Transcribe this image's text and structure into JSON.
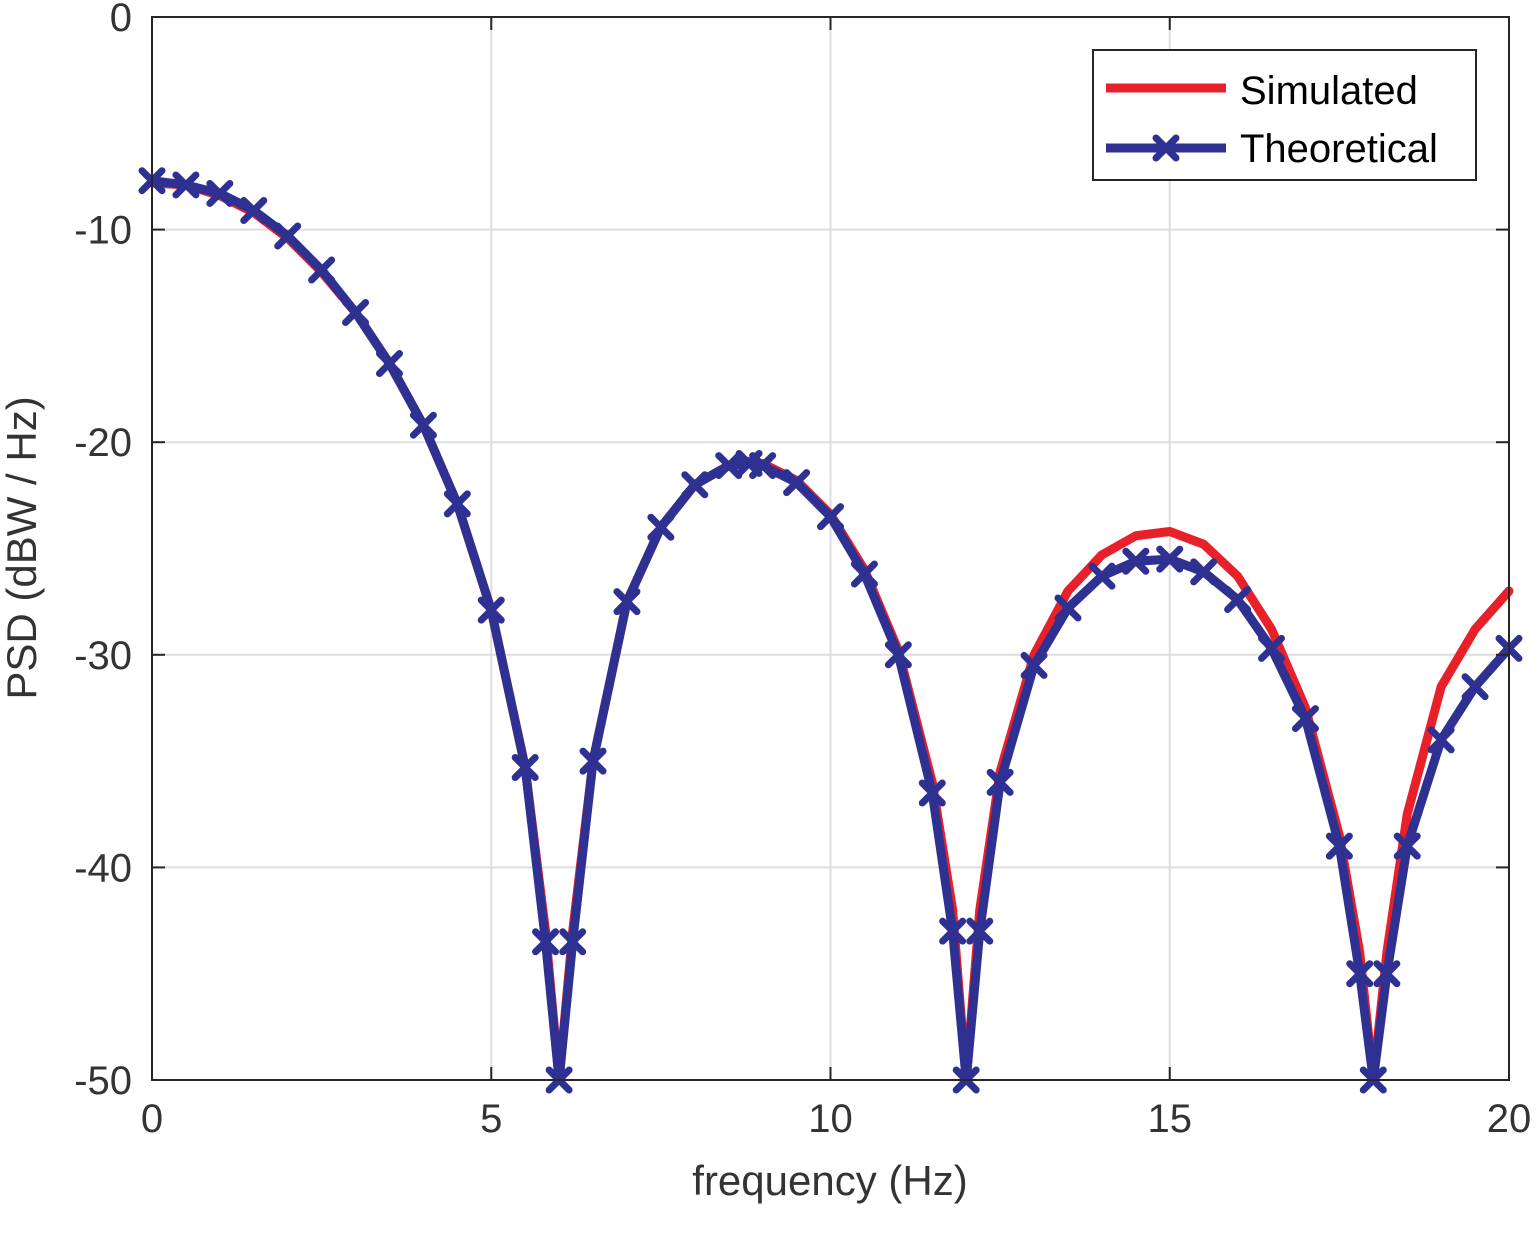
{
  "chart_data": {
    "type": "line",
    "title": "",
    "xlabel": "frequency (Hz)",
    "ylabel": "PSD (dBW / Hz)",
    "xlim": [
      0,
      20
    ],
    "ylim": [
      -50,
      0
    ],
    "xticks": [
      0,
      5,
      10,
      15,
      20
    ],
    "yticks": [
      0,
      -10,
      -20,
      -30,
      -40,
      -50
    ],
    "xtick_labels": [
      "0",
      "5",
      "10",
      "15",
      "20"
    ],
    "ytick_labels": [
      "0",
      "-10",
      "-20",
      "-30",
      "-40",
      "-50"
    ],
    "grid": true,
    "legend_position": "top-right",
    "series": [
      {
        "name": "Simulated",
        "color": "#e8202a",
        "marker": "none",
        "points": [
          [
            0,
            -7.8
          ],
          [
            0.5,
            -7.9
          ],
          [
            1.0,
            -8.4
          ],
          [
            1.5,
            -9.2
          ],
          [
            2.0,
            -10.4
          ],
          [
            2.5,
            -12.0
          ],
          [
            3.0,
            -13.9
          ],
          [
            3.5,
            -16.3
          ],
          [
            4.0,
            -19.2
          ],
          [
            4.5,
            -22.9
          ],
          [
            5.0,
            -27.9
          ],
          [
            5.5,
            -35.3
          ],
          [
            5.8,
            -43.0
          ],
          [
            6.0,
            -50
          ],
          [
            6.2,
            -43.0
          ],
          [
            6.5,
            -35.0
          ],
          [
            7.0,
            -27.5
          ],
          [
            7.5,
            -24.0
          ],
          [
            8.0,
            -22.0
          ],
          [
            8.5,
            -21.1
          ],
          [
            8.8,
            -20.9
          ],
          [
            9.0,
            -21.0
          ],
          [
            9.5,
            -21.8
          ],
          [
            10.0,
            -23.4
          ],
          [
            10.5,
            -26.0
          ],
          [
            11.0,
            -29.8
          ],
          [
            11.5,
            -36.0
          ],
          [
            11.8,
            -42.0
          ],
          [
            12.0,
            -50
          ],
          [
            12.2,
            -42.0
          ],
          [
            12.5,
            -35.5
          ],
          [
            13.0,
            -30.0
          ],
          [
            13.5,
            -27.0
          ],
          [
            14.0,
            -25.3
          ],
          [
            14.5,
            -24.4
          ],
          [
            15.0,
            -24.2
          ],
          [
            15.5,
            -24.8
          ],
          [
            16.0,
            -26.3
          ],
          [
            16.5,
            -28.8
          ],
          [
            17.0,
            -32.5
          ],
          [
            17.5,
            -38.5
          ],
          [
            17.8,
            -44.0
          ],
          [
            18.0,
            -50
          ],
          [
            18.2,
            -44.0
          ],
          [
            18.5,
            -37.5
          ],
          [
            19.0,
            -31.5
          ],
          [
            19.5,
            -28.8
          ],
          [
            20.0,
            -27.0
          ]
        ]
      },
      {
        "name": "Theoretical",
        "color": "#2e3192",
        "marker": "x",
        "points": [
          [
            0,
            -7.7
          ],
          [
            0.5,
            -7.9
          ],
          [
            1.0,
            -8.3
          ],
          [
            1.5,
            -9.1
          ],
          [
            2.0,
            -10.3
          ],
          [
            2.5,
            -11.9
          ],
          [
            3.0,
            -13.9
          ],
          [
            3.5,
            -16.3
          ],
          [
            4.0,
            -19.2
          ],
          [
            4.5,
            -22.9
          ],
          [
            5.0,
            -27.9
          ],
          [
            5.5,
            -35.3
          ],
          [
            5.8,
            -43.5
          ],
          [
            6.0,
            -50
          ],
          [
            6.2,
            -43.5
          ],
          [
            6.5,
            -35.0
          ],
          [
            7.0,
            -27.5
          ],
          [
            7.5,
            -24.0
          ],
          [
            8.0,
            -22.0
          ],
          [
            8.5,
            -21.1
          ],
          [
            8.8,
            -21.0
          ],
          [
            9.0,
            -21.1
          ],
          [
            9.5,
            -21.9
          ],
          [
            10.0,
            -23.5
          ],
          [
            10.5,
            -26.2
          ],
          [
            11.0,
            -30.0
          ],
          [
            11.5,
            -36.5
          ],
          [
            11.8,
            -43.0
          ],
          [
            12.0,
            -50
          ],
          [
            12.2,
            -43.0
          ],
          [
            12.5,
            -36.0
          ],
          [
            13.0,
            -30.5
          ],
          [
            13.5,
            -27.8
          ],
          [
            14.0,
            -26.3
          ],
          [
            14.5,
            -25.6
          ],
          [
            15.0,
            -25.5
          ],
          [
            15.5,
            -26.1
          ],
          [
            16.0,
            -27.4
          ],
          [
            16.5,
            -29.7
          ],
          [
            17.0,
            -33.0
          ],
          [
            17.5,
            -39.0
          ],
          [
            17.8,
            -45.0
          ],
          [
            18.0,
            -50
          ],
          [
            18.2,
            -45.0
          ],
          [
            18.5,
            -39.0
          ],
          [
            19.0,
            -34.0
          ],
          [
            19.5,
            -31.5
          ],
          [
            20.0,
            -29.7
          ]
        ]
      }
    ]
  }
}
